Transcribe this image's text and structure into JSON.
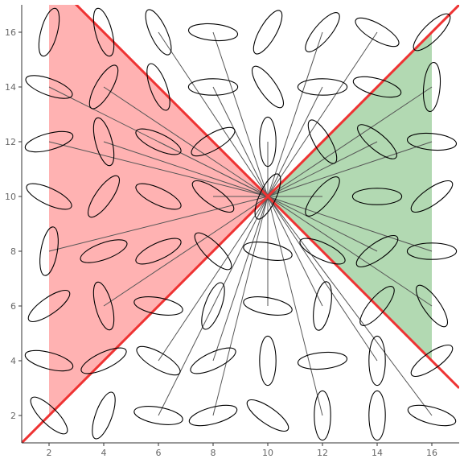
{
  "chart_data": {
    "type": "scatter",
    "title": "",
    "xlabel": "",
    "ylabel": "",
    "xlim": [
      1,
      17
    ],
    "ylim": [
      1,
      17
    ],
    "xticks": [
      "2",
      "4",
      "6",
      "8",
      "10",
      "12",
      "14",
      "16"
    ],
    "yticks": [
      "2",
      "4",
      "6",
      "8",
      "10",
      "12",
      "14",
      "16"
    ],
    "grid": false,
    "center": [
      10,
      10
    ],
    "diagonals": {
      "color": "#ee3333",
      "lines": [
        {
          "x": [
            1,
            17
          ],
          "y": [
            1,
            17
          ]
        },
        {
          "x": [
            1,
            17
          ],
          "y": [
            19,
            3
          ]
        }
      ]
    },
    "regions": [
      {
        "color": "#ff8888",
        "x_from": 2,
        "x_to": 10,
        "side": "left"
      },
      {
        "color": "#88c488",
        "x_from": 10,
        "x_to": 16,
        "side": "right"
      }
    ],
    "ellipses": [
      {
        "x": 2,
        "y": 2,
        "angle": -45,
        "rx": 0.9,
        "ry": 0.3
      },
      {
        "x": 4,
        "y": 2,
        "angle": 70,
        "rx": 0.9,
        "ry": 0.3
      },
      {
        "x": 6,
        "y": 2,
        "angle": -10,
        "rx": 0.9,
        "ry": 0.3
      },
      {
        "x": 8,
        "y": 2,
        "angle": 15,
        "rx": 0.9,
        "ry": 0.3
      },
      {
        "x": 10,
        "y": 2,
        "angle": -35,
        "rx": 0.9,
        "ry": 0.3
      },
      {
        "x": 12,
        "y": 2,
        "angle": 90,
        "rx": 0.9,
        "ry": 0.3
      },
      {
        "x": 14,
        "y": 2,
        "angle": 90,
        "rx": 0.9,
        "ry": 0.3
      },
      {
        "x": 16,
        "y": 2,
        "angle": -15,
        "rx": 0.9,
        "ry": 0.3
      },
      {
        "x": 2,
        "y": 4,
        "angle": -15,
        "rx": 0.9,
        "ry": 0.3
      },
      {
        "x": 4,
        "y": 4,
        "angle": 25,
        "rx": 0.9,
        "ry": 0.3
      },
      {
        "x": 6,
        "y": 4,
        "angle": -30,
        "rx": 0.9,
        "ry": 0.3
      },
      {
        "x": 8,
        "y": 4,
        "angle": 25,
        "rx": 0.9,
        "ry": 0.3
      },
      {
        "x": 10,
        "y": 4,
        "angle": 90,
        "rx": 0.9,
        "ry": 0.3
      },
      {
        "x": 12,
        "y": 4,
        "angle": 5,
        "rx": 0.9,
        "ry": 0.3
      },
      {
        "x": 14,
        "y": 4,
        "angle": 90,
        "rx": 0.9,
        "ry": 0.3
      },
      {
        "x": 16,
        "y": 4,
        "angle": 35,
        "rx": 0.9,
        "ry": 0.3
      },
      {
        "x": 2,
        "y": 6,
        "angle": 35,
        "rx": 0.9,
        "ry": 0.3
      },
      {
        "x": 4,
        "y": 6,
        "angle": -75,
        "rx": 0.9,
        "ry": 0.3
      },
      {
        "x": 6,
        "y": 6,
        "angle": -10,
        "rx": 0.9,
        "ry": 0.3
      },
      {
        "x": 8,
        "y": 6,
        "angle": 70,
        "rx": 0.9,
        "ry": 0.3
      },
      {
        "x": 10,
        "y": 6,
        "angle": -10,
        "rx": 0.9,
        "ry": 0.3
      },
      {
        "x": 12,
        "y": 6,
        "angle": 80,
        "rx": 0.9,
        "ry": 0.3
      },
      {
        "x": 14,
        "y": 6,
        "angle": 50,
        "rx": 0.9,
        "ry": 0.3
      },
      {
        "x": 16,
        "y": 6,
        "angle": -55,
        "rx": 0.9,
        "ry": 0.3
      },
      {
        "x": 2,
        "y": 8,
        "angle": 80,
        "rx": 0.9,
        "ry": 0.3
      },
      {
        "x": 4,
        "y": 8,
        "angle": 20,
        "rx": 0.9,
        "ry": 0.3
      },
      {
        "x": 6,
        "y": 8,
        "angle": 25,
        "rx": 0.9,
        "ry": 0.3
      },
      {
        "x": 8,
        "y": 8,
        "angle": -45,
        "rx": 0.9,
        "ry": 0.3
      },
      {
        "x": 10,
        "y": 8,
        "angle": -10,
        "rx": 0.9,
        "ry": 0.3
      },
      {
        "x": 12,
        "y": 8,
        "angle": -25,
        "rx": 0.9,
        "ry": 0.3
      },
      {
        "x": 14,
        "y": 8,
        "angle": 35,
        "rx": 0.9,
        "ry": 0.3
      },
      {
        "x": 16,
        "y": 8,
        "angle": 0,
        "rx": 0.9,
        "ry": 0.3
      },
      {
        "x": 2,
        "y": 10,
        "angle": -25,
        "rx": 0.9,
        "ry": 0.3
      },
      {
        "x": 4,
        "y": 10,
        "angle": 55,
        "rx": 0.9,
        "ry": 0.3
      },
      {
        "x": 6,
        "y": 10,
        "angle": -25,
        "rx": 0.9,
        "ry": 0.3
      },
      {
        "x": 8,
        "y": 10,
        "angle": -35,
        "rx": 0.9,
        "ry": 0.3
      },
      {
        "x": 10,
        "y": 10,
        "angle": 65,
        "rx": 0.9,
        "ry": 0.3
      },
      {
        "x": 12,
        "y": 10,
        "angle": 50,
        "rx": 0.9,
        "ry": 0.3
      },
      {
        "x": 14,
        "y": 10,
        "angle": 0,
        "rx": 0.9,
        "ry": 0.3
      },
      {
        "x": 16,
        "y": 10,
        "angle": 35,
        "rx": 0.9,
        "ry": 0.3
      },
      {
        "x": 2,
        "y": 12,
        "angle": 15,
        "rx": 0.9,
        "ry": 0.3
      },
      {
        "x": 4,
        "y": 12,
        "angle": -75,
        "rx": 0.9,
        "ry": 0.3
      },
      {
        "x": 6,
        "y": 12,
        "angle": -25,
        "rx": 0.9,
        "ry": 0.3
      },
      {
        "x": 8,
        "y": 12,
        "angle": 30,
        "rx": 0.9,
        "ry": 0.3
      },
      {
        "x": 10,
        "y": 12,
        "angle": 90,
        "rx": 0.9,
        "ry": 0.3
      },
      {
        "x": 12,
        "y": 12,
        "angle": -60,
        "rx": 0.9,
        "ry": 0.3
      },
      {
        "x": 14,
        "y": 12,
        "angle": -40,
        "rx": 0.9,
        "ry": 0.3
      },
      {
        "x": 16,
        "y": 12,
        "angle": -5,
        "rx": 0.9,
        "ry": 0.3
      },
      {
        "x": 2,
        "y": 14,
        "angle": -20,
        "rx": 0.9,
        "ry": 0.3
      },
      {
        "x": 4,
        "y": 14,
        "angle": 60,
        "rx": 0.9,
        "ry": 0.3
      },
      {
        "x": 6,
        "y": 14,
        "angle": -70,
        "rx": 0.9,
        "ry": 0.3
      },
      {
        "x": 8,
        "y": 14,
        "angle": 0,
        "rx": 0.9,
        "ry": 0.3
      },
      {
        "x": 10,
        "y": 14,
        "angle": -55,
        "rx": 0.9,
        "ry": 0.3
      },
      {
        "x": 12,
        "y": 14,
        "angle": 0,
        "rx": 0.9,
        "ry": 0.3
      },
      {
        "x": 14,
        "y": 14,
        "angle": -15,
        "rx": 0.9,
        "ry": 0.3
      },
      {
        "x": 16,
        "y": 14,
        "angle": 85,
        "rx": 0.9,
        "ry": 0.3
      },
      {
        "x": 2,
        "y": 16,
        "angle": 75,
        "rx": 0.9,
        "ry": 0.3
      },
      {
        "x": 4,
        "y": 16,
        "angle": -75,
        "rx": 0.9,
        "ry": 0.3
      },
      {
        "x": 6,
        "y": 16,
        "angle": -65,
        "rx": 0.9,
        "ry": 0.3
      },
      {
        "x": 8,
        "y": 16,
        "angle": -5,
        "rx": 0.9,
        "ry": 0.3
      },
      {
        "x": 10,
        "y": 16,
        "angle": 60,
        "rx": 0.9,
        "ry": 0.3
      },
      {
        "x": 12,
        "y": 16,
        "angle": 50,
        "rx": 0.9,
        "ry": 0.3
      },
      {
        "x": 14,
        "y": 16,
        "angle": -30,
        "rx": 0.9,
        "ry": 0.3
      },
      {
        "x": 16,
        "y": 16,
        "angle": 45,
        "rx": 0.9,
        "ry": 0.3
      }
    ],
    "connectors": [
      [
        4,
        14
      ],
      [
        4,
        12
      ],
      [
        2,
        14
      ],
      [
        2,
        12
      ],
      [
        2,
        8
      ],
      [
        4,
        6
      ],
      [
        6,
        16
      ],
      [
        6,
        14
      ],
      [
        6,
        12
      ],
      [
        6,
        4
      ],
      [
        6,
        2
      ],
      [
        8,
        16
      ],
      [
        8,
        14
      ],
      [
        8,
        12
      ],
      [
        8,
        10
      ],
      [
        8,
        8
      ],
      [
        8,
        4
      ],
      [
        8,
        2
      ],
      [
        10,
        12
      ],
      [
        10,
        8
      ],
      [
        10,
        6
      ],
      [
        12,
        16
      ],
      [
        12,
        14
      ],
      [
        12,
        10
      ],
      [
        12,
        8
      ],
      [
        12,
        6
      ],
      [
        12,
        2
      ],
      [
        14,
        16
      ],
      [
        14,
        12
      ],
      [
        14,
        8
      ],
      [
        14,
        4
      ],
      [
        16,
        14
      ],
      [
        16,
        12
      ],
      [
        16,
        8
      ],
      [
        16,
        6
      ],
      [
        16,
        2
      ]
    ]
  }
}
